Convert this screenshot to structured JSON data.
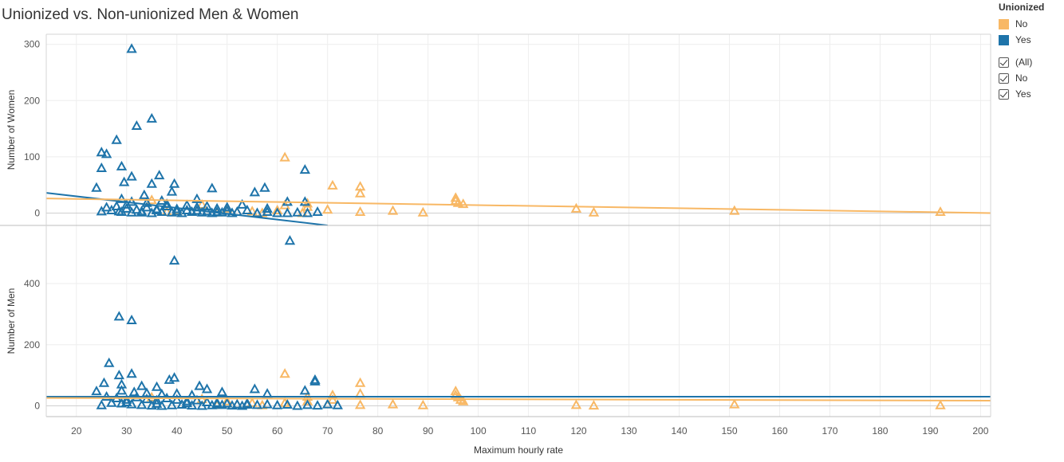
{
  "title": "Unionized vs. Non-unionized Men & Women",
  "legend": {
    "title": "Unionized",
    "items": [
      {
        "label": "No",
        "color": "#f8b865"
      },
      {
        "label": "Yes",
        "color": "#1e74aa"
      }
    ],
    "filter": [
      "(All)",
      "No",
      "Yes"
    ]
  },
  "chart_data": {
    "type": "scatter",
    "marker": "triangle-outline",
    "xlabel": "Maximum hourly rate",
    "xlim": [
      14,
      202
    ],
    "xticks": [
      "20",
      "30",
      "40",
      "50",
      "60",
      "70",
      "80",
      "90",
      "100",
      "110",
      "120",
      "130",
      "140",
      "150",
      "160",
      "170",
      "180",
      "190",
      "200"
    ],
    "colors": {
      "No": "#f8b865",
      "Yes": "#1e74aa"
    },
    "panes": [
      {
        "ylabel": "Number of Women",
        "ylim": [
          -22,
          318
        ],
        "yticks": [
          "0",
          "100",
          "200",
          "300"
        ],
        "series": [
          {
            "name": "Yes",
            "points": [
              [
                31,
                292
              ],
              [
                35,
                168
              ],
              [
                32,
                155
              ],
              [
                28,
                130
              ],
              [
                25,
                108
              ],
              [
                26,
                105
              ],
              [
                29,
                83
              ],
              [
                25,
                80
              ],
              [
                31,
                65
              ],
              [
                36.5,
                67
              ],
              [
                39.5,
                52
              ],
              [
                35,
                52
              ],
              [
                29.5,
                55
              ],
              [
                24,
                45
              ],
              [
                47,
                44
              ],
              [
                39,
                38
              ],
              [
                57.5,
                45
              ],
              [
                65.5,
                77
              ],
              [
                55.5,
                37
              ],
              [
                33.5,
                32
              ],
              [
                29,
                25
              ],
              [
                31,
                20
              ],
              [
                37,
                22
              ],
              [
                44,
                25
              ],
              [
                53,
                15
              ],
              [
                62,
                20
              ],
              [
                65.5,
                20
              ],
              [
                58,
                8
              ],
              [
                28,
                12
              ],
              [
                26,
                10
              ],
              [
                30,
                8
              ],
              [
                32,
                6
              ],
              [
                34,
                10
              ],
              [
                36,
                5
              ],
              [
                38,
                12
              ],
              [
                40,
                7
              ],
              [
                42,
                5
              ],
              [
                44,
                10
              ],
              [
                46,
                3
              ],
              [
                48,
                8
              ],
              [
                50,
                4
              ],
              [
                52,
                2
              ],
              [
                29,
                2
              ],
              [
                31,
                1
              ],
              [
                33,
                3
              ],
              [
                35,
                0
              ],
              [
                37,
                2
              ],
              [
                39,
                1
              ],
              [
                41,
                0
              ],
              [
                43,
                2
              ],
              [
                45,
                1
              ],
              [
                47,
                0
              ],
              [
                49,
                1
              ],
              [
                51,
                0
              ],
              [
                25,
                3
              ],
              [
                54,
                5
              ],
              [
                56,
                0
              ],
              [
                58,
                2
              ],
              [
                60,
                0
              ],
              [
                62,
                0
              ],
              [
                64,
                1
              ],
              [
                66,
                0
              ],
              [
                68,
                2
              ],
              [
                30,
                15
              ],
              [
                34,
                18
              ],
              [
                38,
                16
              ],
              [
                42,
                14
              ],
              [
                46,
                12
              ],
              [
                50,
                10
              ],
              [
                27,
                5
              ],
              [
                28.5,
                3
              ],
              [
                33,
                1
              ],
              [
                36,
                7
              ],
              [
                40,
                3
              ],
              [
                44,
                4
              ],
              [
                48,
                2
              ]
            ]
          },
          {
            "name": "No",
            "points": [
              [
                61.5,
                99
              ],
              [
                71,
                49
              ],
              [
                76.5,
                47
              ],
              [
                76.5,
                35
              ],
              [
                95.5,
                27
              ],
              [
                95.5,
                22
              ],
              [
                96,
                18
              ],
              [
                97,
                16
              ],
              [
                66,
                17
              ],
              [
                61.5,
                14
              ],
              [
                66,
                11
              ],
              [
                70,
                6
              ],
              [
                76.5,
                2
              ],
              [
                83,
                4
              ],
              [
                89,
                1
              ],
              [
                119.5,
                8
              ],
              [
                123,
                1
              ],
              [
                151,
                4
              ],
              [
                192,
                2
              ],
              [
                35,
                23
              ],
              [
                45,
                15
              ],
              [
                50,
                8
              ],
              [
                55,
                3
              ],
              [
                60,
                5
              ],
              [
                57,
                0
              ],
              [
                52,
                2
              ],
              [
                65,
                0
              ],
              [
                48,
                1
              ],
              [
                38,
                2
              ],
              [
                40,
                4
              ]
            ]
          }
        ],
        "trends": [
          {
            "name": "Yes",
            "x": [
              14,
              70
            ],
            "y": [
              36,
              -22
            ]
          },
          {
            "name": "No",
            "x": [
              14,
              202
            ],
            "y": [
              26,
              0
            ]
          }
        ]
      },
      {
        "ylabel": "Number of Men",
        "ylim": [
          -35,
          590
        ],
        "yticks": [
          "0",
          "200",
          "400"
        ],
        "series": [
          {
            "name": "Yes",
            "points": [
              [
                62.5,
                540
              ],
              [
                39.5,
                475
              ],
              [
                28.5,
                292
              ],
              [
                31,
                280
              ],
              [
                26.5,
                140
              ],
              [
                31,
                105
              ],
              [
                28.5,
                100
              ],
              [
                39.5,
                92
              ],
              [
                38.5,
                85
              ],
              [
                67.5,
                85
              ],
              [
                67.5,
                80
              ],
              [
                25.5,
                75
              ],
              [
                29,
                70
              ],
              [
                33,
                65
              ],
              [
                44.5,
                65
              ],
              [
                46,
                55
              ],
              [
                55.5,
                55
              ],
              [
                36,
                62
              ],
              [
                24,
                48
              ],
              [
                29,
                50
              ],
              [
                31.5,
                45
              ],
              [
                34,
                42
              ],
              [
                37,
                38
              ],
              [
                40,
                40
              ],
              [
                43,
                35
              ],
              [
                49,
                45
              ],
              [
                58,
                40
              ],
              [
                65.5,
                50
              ],
              [
                26,
                30
              ],
              [
                28,
                25
              ],
              [
                30,
                20
              ],
              [
                32,
                28
              ],
              [
                34,
                22
              ],
              [
                36,
                18
              ],
              [
                38,
                25
              ],
              [
                40,
                20
              ],
              [
                42,
                15
              ],
              [
                44,
                18
              ],
              [
                46,
                12
              ],
              [
                48,
                10
              ],
              [
                50,
                8
              ],
              [
                52,
                5
              ],
              [
                54,
                8
              ],
              [
                56,
                3
              ],
              [
                58,
                5
              ],
              [
                60,
                2
              ],
              [
                62,
                4
              ],
              [
                64,
                0
              ],
              [
                66,
                3
              ],
              [
                68,
                1
              ],
              [
                70,
                5
              ],
              [
                72,
                2
              ],
              [
                27,
                10
              ],
              [
                29,
                8
              ],
              [
                31,
                5
              ],
              [
                33,
                3
              ],
              [
                35,
                1
              ],
              [
                37,
                0
              ],
              [
                39,
                2
              ],
              [
                41,
                4
              ],
              [
                43,
                1
              ],
              [
                45,
                0
              ],
              [
                47,
                2
              ],
              [
                49,
                3
              ],
              [
                51,
                1
              ],
              [
                53,
                0
              ],
              [
                25,
                2
              ],
              [
                30,
                12
              ],
              [
                36,
                7
              ],
              [
                42,
                9
              ],
              [
                48,
                6
              ],
              [
                54,
                4
              ]
            ]
          },
          {
            "name": "No",
            "points": [
              [
                61.5,
                105
              ],
              [
                76.5,
                75
              ],
              [
                76.5,
                40
              ],
              [
                95.5,
                48
              ],
              [
                95.5,
                35
              ],
              [
                96,
                28
              ],
              [
                96.5,
                20
              ],
              [
                97,
                15
              ],
              [
                71,
                35
              ],
              [
                71,
                20
              ],
              [
                66,
                30
              ],
              [
                66,
                15
              ],
              [
                61.5,
                10
              ],
              [
                83,
                5
              ],
              [
                89,
                2
              ],
              [
                119.5,
                3
              ],
              [
                123,
                1
              ],
              [
                151,
                5
              ],
              [
                192,
                2
              ],
              [
                70,
                5
              ],
              [
                76.5,
                3
              ],
              [
                35,
                28
              ],
              [
                45,
                22
              ],
              [
                50,
                15
              ],
              [
                55,
                10
              ],
              [
                52,
                5
              ],
              [
                48,
                3
              ],
              [
                57,
                2
              ]
            ]
          }
        ],
        "trends": [
          {
            "name": "Yes",
            "x": [
              14,
              202
            ],
            "y": [
              30,
              30
            ]
          },
          {
            "name": "No",
            "x": [
              14,
              202
            ],
            "y": [
              26,
              17
            ]
          }
        ]
      }
    ]
  }
}
